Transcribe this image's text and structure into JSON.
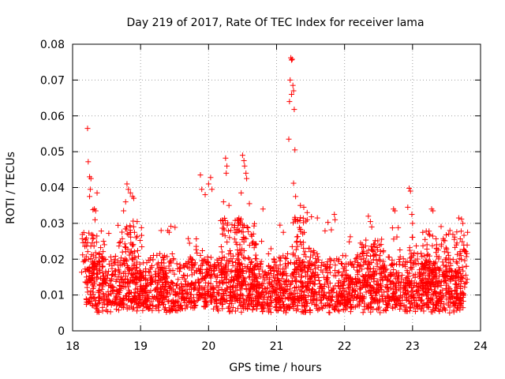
{
  "chart_data": {
    "type": "scatter",
    "title": "Day 219 of 2017, Rate Of TEC Index for receiver lama",
    "xlabel": "GPS time / hours",
    "ylabel": "ROTI / TECUs",
    "xlim": [
      18,
      24
    ],
    "ylim": [
      0,
      0.08
    ],
    "x_ticks": [
      18,
      19,
      20,
      21,
      22,
      23,
      24
    ],
    "y_ticks": [
      0,
      0.01,
      0.02,
      0.03,
      0.04,
      0.05,
      0.06,
      0.07,
      0.08
    ],
    "x_tick_labels": [
      "18",
      "19",
      "20",
      "21",
      "22",
      "23",
      "24"
    ],
    "y_tick_labels": [
      "0",
      "0.01",
      "0.02",
      "0.03",
      "0.04",
      "0.05",
      "0.06",
      "0.07",
      "0.08"
    ],
    "grid": true,
    "marker": "+",
    "marker_color": "#ff0000",
    "series": [
      {
        "name": "ROTI",
        "x_range": [
          18.2,
          23.75
        ],
        "baseline_band": [
          0.005,
          0.022
        ],
        "highlights": [
          {
            "x": 18.22,
            "y": 0.0565
          },
          {
            "x": 18.23,
            "y": 0.0472
          },
          {
            "x": 18.25,
            "y": 0.043
          },
          {
            "x": 18.27,
            "y": 0.0425
          },
          {
            "x": 18.26,
            "y": 0.0395
          },
          {
            "x": 18.25,
            "y": 0.0375
          },
          {
            "x": 18.3,
            "y": 0.0338
          },
          {
            "x": 18.32,
            "y": 0.034
          },
          {
            "x": 18.34,
            "y": 0.0335
          },
          {
            "x": 18.36,
            "y": 0.0385
          },
          {
            "x": 18.33,
            "y": 0.031
          },
          {
            "x": 18.8,
            "y": 0.041
          },
          {
            "x": 18.82,
            "y": 0.0395
          },
          {
            "x": 18.85,
            "y": 0.0385
          },
          {
            "x": 18.78,
            "y": 0.036
          },
          {
            "x": 18.88,
            "y": 0.0375
          },
          {
            "x": 18.9,
            "y": 0.037
          },
          {
            "x": 18.95,
            "y": 0.0305
          },
          {
            "x": 18.75,
            "y": 0.0335
          },
          {
            "x": 19.4,
            "y": 0.028
          },
          {
            "x": 19.42,
            "y": 0.0275
          },
          {
            "x": 19.88,
            "y": 0.0435
          },
          {
            "x": 19.9,
            "y": 0.0395
          },
          {
            "x": 19.95,
            "y": 0.038
          },
          {
            "x": 20.0,
            "y": 0.041
          },
          {
            "x": 20.03,
            "y": 0.0428
          },
          {
            "x": 20.05,
            "y": 0.0395
          },
          {
            "x": 20.25,
            "y": 0.0482
          },
          {
            "x": 20.27,
            "y": 0.046
          },
          {
            "x": 20.26,
            "y": 0.044
          },
          {
            "x": 20.22,
            "y": 0.036
          },
          {
            "x": 20.3,
            "y": 0.035
          },
          {
            "x": 20.5,
            "y": 0.049
          },
          {
            "x": 20.52,
            "y": 0.0475
          },
          {
            "x": 20.53,
            "y": 0.046
          },
          {
            "x": 20.55,
            "y": 0.044
          },
          {
            "x": 20.56,
            "y": 0.0425
          },
          {
            "x": 20.48,
            "y": 0.0385
          },
          {
            "x": 20.6,
            "y": 0.0355
          },
          {
            "x": 20.8,
            "y": 0.034
          },
          {
            "x": 21.05,
            "y": 0.0295
          },
          {
            "x": 21.1,
            "y": 0.0275
          },
          {
            "x": 21.18,
            "y": 0.0535
          },
          {
            "x": 21.19,
            "y": 0.064
          },
          {
            "x": 21.2,
            "y": 0.07
          },
          {
            "x": 21.21,
            "y": 0.0762
          },
          {
            "x": 21.22,
            "y": 0.0756
          },
          {
            "x": 21.23,
            "y": 0.0758
          },
          {
            "x": 21.24,
            "y": 0.0685
          },
          {
            "x": 21.25,
            "y": 0.067
          },
          {
            "x": 21.22,
            "y": 0.066
          },
          {
            "x": 21.26,
            "y": 0.0618
          },
          {
            "x": 21.27,
            "y": 0.0505
          },
          {
            "x": 21.25,
            "y": 0.0412
          },
          {
            "x": 21.28,
            "y": 0.0375
          },
          {
            "x": 21.35,
            "y": 0.035
          },
          {
            "x": 21.4,
            "y": 0.0345
          },
          {
            "x": 21.45,
            "y": 0.033
          },
          {
            "x": 21.6,
            "y": 0.0315
          },
          {
            "x": 21.85,
            "y": 0.0325
          },
          {
            "x": 21.86,
            "y": 0.031
          },
          {
            "x": 22.35,
            "y": 0.032
          },
          {
            "x": 22.38,
            "y": 0.0305
          },
          {
            "x": 22.4,
            "y": 0.029
          },
          {
            "x": 22.72,
            "y": 0.034
          },
          {
            "x": 22.74,
            "y": 0.0335
          },
          {
            "x": 22.95,
            "y": 0.0398
          },
          {
            "x": 22.97,
            "y": 0.039
          },
          {
            "x": 22.93,
            "y": 0.0345
          },
          {
            "x": 22.99,
            "y": 0.0325
          },
          {
            "x": 23.0,
            "y": 0.03
          },
          {
            "x": 23.28,
            "y": 0.034
          },
          {
            "x": 23.3,
            "y": 0.0335
          },
          {
            "x": 23.55,
            "y": 0.028
          },
          {
            "x": 23.68,
            "y": 0.0315
          },
          {
            "x": 23.72,
            "y": 0.0312
          },
          {
            "x": 23.74,
            "y": 0.03
          }
        ]
      }
    ]
  }
}
